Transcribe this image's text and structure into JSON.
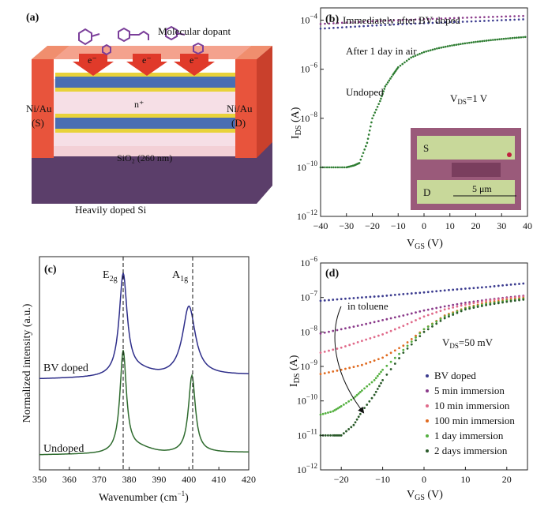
{
  "panel_a": {
    "label": "(a)",
    "dopant_label": "Molecular dopant",
    "electron_label": "e⁻",
    "n_plus_label": "n⁺",
    "source_label": "Ni/Au",
    "source_sub": "(S)",
    "drain_label": "Ni/Au",
    "drain_sub": "(D)",
    "oxide_label": "SiO₂ (260 nm)",
    "substrate_label": "Heavily doped Si",
    "colors": {
      "contact": "#e8543c",
      "oxide": "#f3d0d6",
      "substrate": "#5b3e6a",
      "arrow": "#e03a2a"
    }
  },
  "panel_b": {
    "label": "(b)",
    "ann_immediate": "Immediately after BV doped",
    "ann_air": "After 1 day in air",
    "ann_undoped": "Undoped",
    "ann_vds": "V",
    "ann_vds_sub": "DS",
    "ann_vds_val": "=1 V",
    "xlabel": "V",
    "xlabel_sub": "GS",
    "xlabel_unit": " (V)",
    "ylabel": "I",
    "ylabel_sub": "DS",
    "ylabel_unit": " (A)",
    "inset_S": "S",
    "inset_D": "D",
    "inset_scale": "5 μm",
    "xticks": [
      "−40",
      "−30",
      "−20",
      "−10",
      "0",
      "10",
      "20",
      "30",
      "40"
    ],
    "yticks": [
      {
        "base": "10",
        "exp": "−4"
      },
      {
        "base": "10",
        "exp": "−6"
      },
      {
        "base": "10",
        "exp": "−8"
      },
      {
        "base": "10",
        "exp": "−10"
      },
      {
        "base": "10",
        "exp": "−12"
      }
    ]
  },
  "panel_c": {
    "label": "(c)",
    "peak1": "E",
    "peak1_sub": "2g",
    "peak2": "A",
    "peak2_sub": "1g",
    "series_bv": "BV doped",
    "series_undoped": "Undoped",
    "xlabel": "Wavenumber (cm",
    "xlabel_sup": "−1",
    "xlabel_end": ")",
    "ylabel": "Normalized intensity (a.u.)",
    "xticks": [
      "350",
      "360",
      "370",
      "380",
      "390",
      "400",
      "410",
      "420"
    ]
  },
  "panel_d": {
    "label": "(d)",
    "ann_toluene": "in toluene",
    "ann_vds": "V",
    "ann_vds_sub": "DS",
    "ann_vds_val": "=50 mV",
    "xlabel": "V",
    "xlabel_sub": "GS",
    "xlabel_unit": " (V)",
    "ylabel": "I",
    "ylabel_sub": "DS",
    "ylabel_unit": " (A)",
    "xticks": [
      "−20",
      "−10",
      "0",
      "10",
      "20"
    ],
    "yticks": [
      {
        "base": "10",
        "exp": "−6"
      },
      {
        "base": "10",
        "exp": "−7"
      },
      {
        "base": "10",
        "exp": "−8"
      },
      {
        "base": "10",
        "exp": "−9"
      },
      {
        "base": "10",
        "exp": "−10"
      },
      {
        "base": "10",
        "exp": "−11"
      },
      {
        "base": "10",
        "exp": "−12"
      }
    ],
    "legend": [
      "BV doped",
      "5 min immersion",
      "10 min immersion",
      "100 min immersion",
      "1 day immersion",
      "2 days immersion"
    ]
  },
  "chart_data": [
    {
      "panel": "b",
      "type": "scatter",
      "xlabel": "VGS (V)",
      "ylabel": "IDS (A)",
      "xlim": [
        -40,
        40
      ],
      "ylim_log10": [
        -12,
        -3.5
      ],
      "yscale": "log",
      "series": [
        {
          "name": "Immediately after BV doped",
          "color": "#8a3a8a",
          "x": [
            -40,
            -30,
            -20,
            -10,
            0,
            10,
            20,
            30,
            40
          ],
          "y": [
            7e-05,
            8e-05,
            9e-05,
            0.0001,
            0.00011,
            0.00012,
            0.00013,
            0.00014,
            0.00015
          ]
        },
        {
          "name": "After 1 day in air",
          "color": "#3b3b8f",
          "x": [
            -40,
            -30,
            -20,
            -10,
            0,
            10,
            20,
            30,
            40
          ],
          "y": [
            4.5e-05,
            5.2e-05,
            6e-05,
            6.8e-05,
            7.5e-05,
            8.3e-05,
            9e-05,
            0.0001,
            0.00011
          ]
        },
        {
          "name": "Undoped",
          "color": "#2e7d32",
          "x": [
            -40,
            -35,
            -30,
            -27,
            -25,
            -22,
            -20,
            -17,
            -15,
            -12,
            -10,
            -5,
            0,
            5,
            10,
            15,
            20,
            25,
            30,
            35,
            40
          ],
          "y": [
            1e-10,
            1e-10,
            1e-10,
            1.2e-10,
            1.5e-10,
            1e-09,
            1e-08,
            5e-08,
            2e-07,
            6e-07,
            1.2e-06,
            3e-06,
            5e-06,
            7e-06,
            9e-06,
            1.1e-05,
            1.3e-05,
            1.5e-05,
            1.7e-05,
            1.9e-05,
            2.1e-05
          ]
        }
      ]
    },
    {
      "panel": "c",
      "type": "line",
      "xlabel": "Wavenumber (cm−1)",
      "ylabel": "Normalized intensity (a.u.)",
      "xlim": [
        350,
        420
      ],
      "series": [
        {
          "name": "BV doped",
          "color": "#2e2e8a",
          "peaks": [
            378,
            400
          ]
        },
        {
          "name": "Undoped",
          "color": "#2e6b2e",
          "peaks": [
            378,
            401
          ]
        }
      ]
    },
    {
      "panel": "d",
      "type": "scatter",
      "xlabel": "VGS (V)",
      "ylabel": "IDS (A)",
      "xlim": [
        -25,
        25
      ],
      "ylim_log10": [
        -12,
        -6
      ],
      "yscale": "log",
      "series": [
        {
          "name": "BV doped",
          "color": "#3b3b8f",
          "x": [
            -25,
            -20,
            -15,
            -10,
            -5,
            0,
            5,
            10,
            15,
            20,
            25
          ],
          "y": [
            8e-08,
            9e-08,
            1e-07,
            1.1e-07,
            1.25e-07,
            1.4e-07,
            1.6e-07,
            1.8e-07,
            2e-07,
            2.3e-07,
            2.6e-07
          ]
        },
        {
          "name": "5 min immersion",
          "color": "#8a3a8a",
          "x": [
            -25,
            -20,
            -15,
            -10,
            -5,
            0,
            5,
            10,
            15,
            20,
            25
          ],
          "y": [
            9e-09,
            1.2e-08,
            1.6e-08,
            2.2e-08,
            3e-08,
            4.2e-08,
            5.5e-08,
            7e-08,
            8.5e-08,
            1e-07,
            1.15e-07
          ]
        },
        {
          "name": "10 min immersion",
          "color": "#e06a8a",
          "x": [
            -25,
            -20,
            -15,
            -10,
            -5,
            0,
            5,
            10,
            15,
            20,
            25
          ],
          "y": [
            2.5e-09,
            3.5e-09,
            5.5e-09,
            8.5e-09,
            1.5e-08,
            2.8e-08,
            4.5e-08,
            6.2e-08,
            8e-08,
            9.5e-08,
            1.1e-07
          ]
        },
        {
          "name": "100 min immersion",
          "color": "#e06a1f",
          "x": [
            -25,
            -20,
            -15,
            -10,
            -5,
            0,
            5,
            10,
            15,
            20,
            25
          ],
          "y": [
            6e-10,
            8e-10,
            1.1e-09,
            1.8e-09,
            4e-09,
            1.2e-08,
            3e-08,
            5e-08,
            7e-08,
            8.5e-08,
            1e-07
          ]
        },
        {
          "name": "1 day immersion",
          "color": "#55b040",
          "x": [
            -25,
            -22,
            -20,
            -17,
            -15,
            -12,
            -10,
            -5,
            0,
            5,
            10,
            15,
            20,
            25
          ],
          "y": [
            4e-11,
            5e-11,
            7e-11,
            1.2e-10,
            2e-10,
            4e-10,
            8e-10,
            3e-09,
            1.2e-08,
            2.8e-08,
            4.8e-08,
            6.5e-08,
            8e-08,
            9.5e-08
          ]
        },
        {
          "name": "2 days immersion",
          "color": "#2a5a2a",
          "x": [
            -25,
            -22,
            -20,
            -17,
            -15,
            -12,
            -10,
            -5,
            0,
            5,
            10,
            15,
            20,
            25
          ],
          "y": [
            1e-11,
            1e-11,
            1e-11,
            2e-11,
            5e-11,
            1.5e-10,
            4e-10,
            2.5e-09,
            1e-08,
            2.5e-08,
            4.5e-08,
            6e-08,
            7.5e-08,
            9e-08
          ]
        }
      ]
    }
  ]
}
